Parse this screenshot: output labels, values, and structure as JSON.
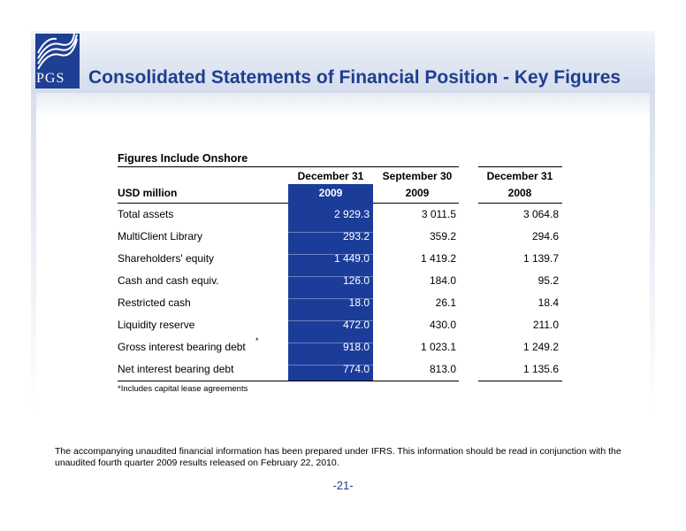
{
  "header": {
    "logo_text": "PGS",
    "title": "Consolidated Statements of Financial Position - Key Figures"
  },
  "table": {
    "title": "Figures Include Onshore",
    "unit_label": "USD million",
    "columns": [
      {
        "top": "December 31",
        "bottom": "2009",
        "highlighted": true
      },
      {
        "top": "September 30",
        "bottom": "2009",
        "highlighted": false
      },
      {
        "top": "December 31",
        "bottom": "2008",
        "highlighted": false
      }
    ],
    "rows": [
      {
        "label": "Total assets",
        "values": [
          "2 929.3",
          "3 011.5",
          "3 064.8"
        ]
      },
      {
        "label": "MultiClient Library",
        "values": [
          "293.2",
          "359.2",
          "294.6"
        ]
      },
      {
        "label": "Shareholders' equity",
        "values": [
          "1 449.0",
          "1 419.2",
          "1 139.7"
        ]
      },
      {
        "label": "Cash and cash equiv.",
        "values": [
          "126.0",
          "184.0",
          "95.2"
        ]
      },
      {
        "label": "Restricted cash",
        "values": [
          "18.0",
          "26.1",
          "18.4"
        ]
      },
      {
        "label": "Liquidity reserve",
        "values": [
          "472.0",
          "430.0",
          "211.0"
        ]
      },
      {
        "label": "Gross interest bearing debt",
        "values": [
          "918.0",
          "1 023.1",
          "1 249.2"
        ]
      },
      {
        "label": "Net interest bearing debt",
        "values": [
          "774.0",
          "813.0",
          "1 135.6"
        ]
      }
    ],
    "footnote_marker": "*",
    "footnote": "*Includes capital lease agreements"
  },
  "note": "The accompanying unaudited financial information has been prepared under IFRS. This information should be read in conjunction with the unaudited fourth quarter 2009 results released on February 22, 2010.",
  "page_number": "-21-",
  "colors": {
    "brand_blue": "#1f3e8f",
    "highlight_column": "#1c3c9a"
  }
}
